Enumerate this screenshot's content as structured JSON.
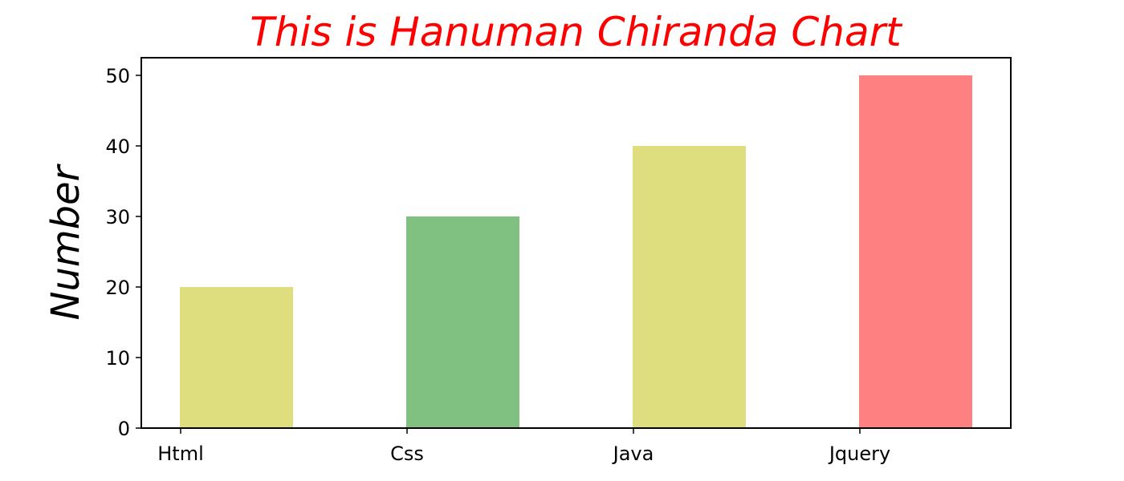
{
  "chart_data": {
    "type": "bar",
    "title": "This is Hanuman Chiranda Chart",
    "title_color": "#ff0000",
    "xlabel": "",
    "ylabel": "Number",
    "categories": [
      "Html",
      "Css",
      "Java",
      "Jquery"
    ],
    "values": [
      20,
      30,
      40,
      50
    ],
    "bar_colors": [
      "#dede7e",
      "#80c080",
      "#dede7e",
      "#ff8080"
    ],
    "ylim": [
      0,
      52.5
    ],
    "yticks": [
      0,
      10,
      20,
      30,
      40,
      50
    ],
    "grid": false,
    "legend": "none"
  }
}
